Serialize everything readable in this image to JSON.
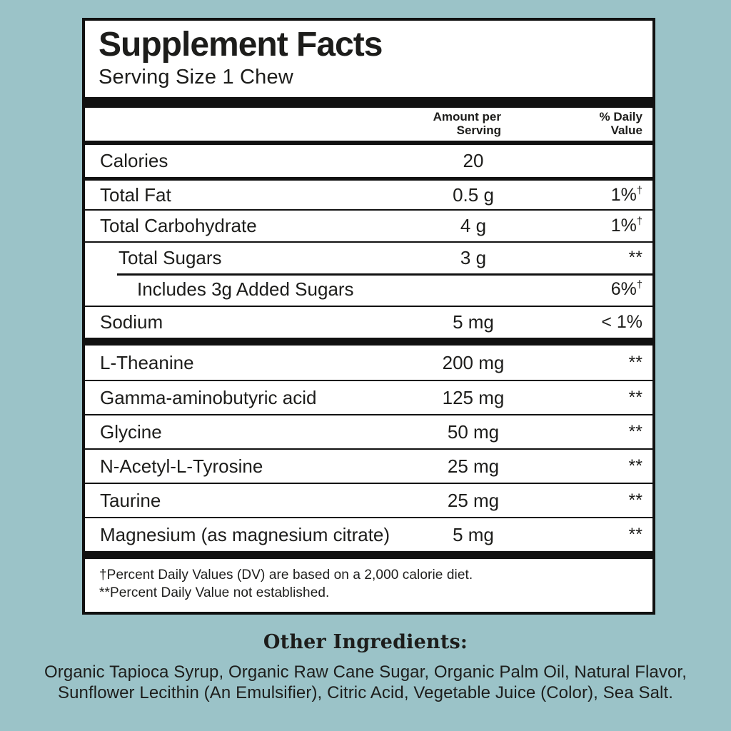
{
  "colors": {
    "background": "#9bc3c8",
    "panel_background": "#ffffff",
    "text": "#1d1d1b",
    "rule": "#111111"
  },
  "panel": {
    "title": "Supplement Facts",
    "serving_size": "Serving Size 1 Chew",
    "header": {
      "amount_lines": [
        "Amount per",
        "Serving"
      ],
      "daily_lines": [
        "% Daily",
        "Value"
      ]
    },
    "nutrition_rows": [
      {
        "name": "Calories",
        "amount": "20",
        "dv": "",
        "indent": 0
      },
      {
        "name": "Total Fat",
        "amount": "0.5 g",
        "dv": "1%†",
        "indent": 0
      },
      {
        "name": "Total Carbohydrate",
        "amount": "4 g",
        "dv": "1%†",
        "indent": 0
      },
      {
        "name": "Total Sugars",
        "amount": "3 g",
        "dv": "**",
        "indent": 1
      },
      {
        "name": "Includes 3g Added Sugars",
        "amount": "",
        "dv": "6%†",
        "indent": 2
      },
      {
        "name": "Sodium",
        "amount": "5 mg",
        "dv": "< 1%",
        "indent": 0
      }
    ],
    "supplement_rows": [
      {
        "name": "L-Theanine",
        "amount": "200 mg",
        "dv": "**"
      },
      {
        "name": "Gamma-aminobutyric acid",
        "amount": "125 mg",
        "dv": "**"
      },
      {
        "name": "Glycine",
        "amount": "50 mg",
        "dv": "**"
      },
      {
        "name": "N-Acetyl-L-Tyrosine",
        "amount": "25 mg",
        "dv": "**"
      },
      {
        "name": "Taurine",
        "amount": "25 mg",
        "dv": "**"
      },
      {
        "name": "Magnesium (as magnesium citrate)",
        "amount": "5 mg",
        "dv": "**"
      }
    ],
    "footnotes": [
      "†Percent Daily Values (DV) are based on a 2,000 calorie diet.",
      "**Percent Daily Value not established."
    ]
  },
  "other_ingredients": {
    "heading": "Other Ingredients:",
    "lines": [
      "Organic Tapioca Syrup, Organic Raw Cane Sugar, Organic Palm Oil, Natural Flavor,",
      "Sunflower Lecithin (An Emulsifier), Citric Acid, Vegetable Juice (Color), Sea Salt."
    ]
  }
}
